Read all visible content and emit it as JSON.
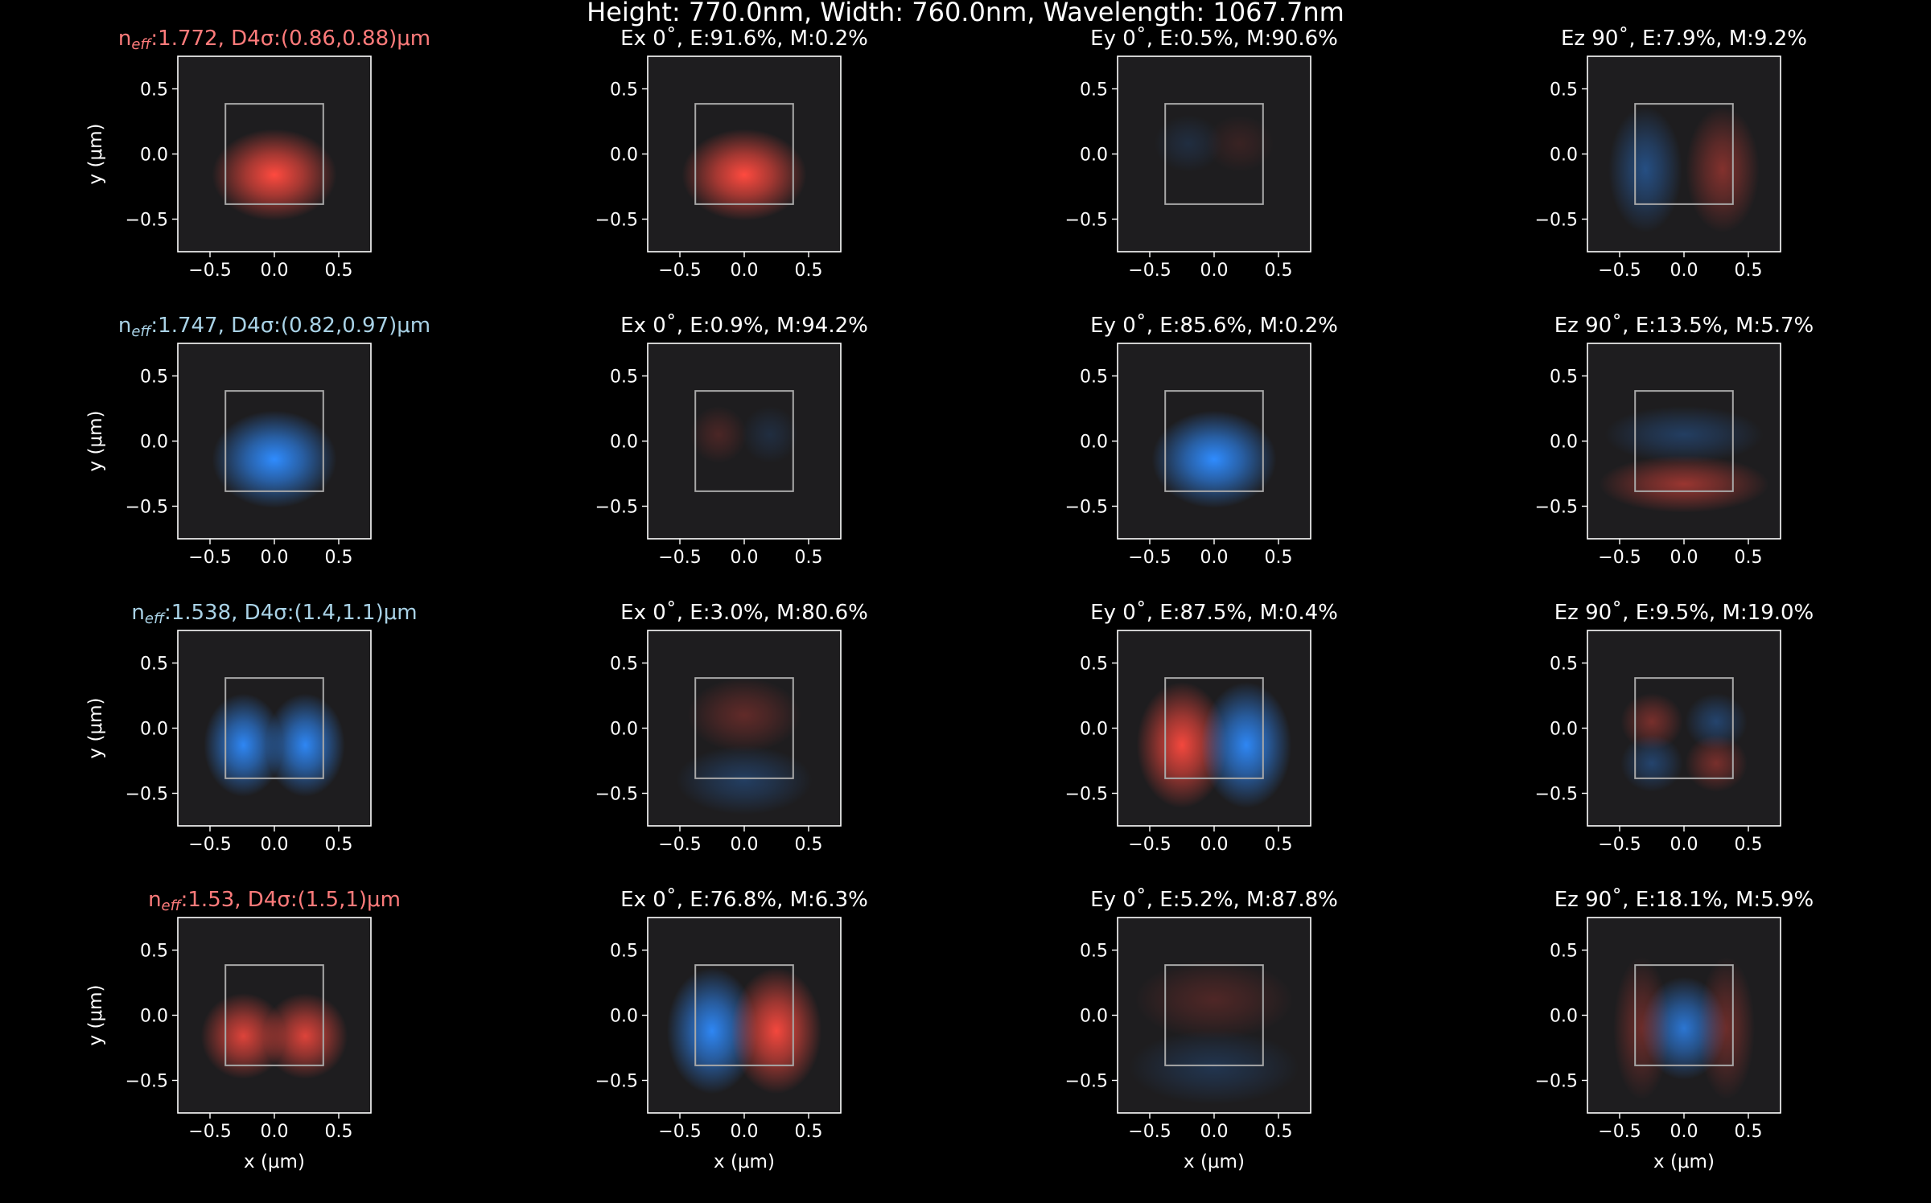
{
  "figure": {
    "suptitle": "Height: 770.0nm, Width: 760.0nm, Wavelength: 1067.7nm"
  },
  "colors": {
    "background": "#000000",
    "panel_bg": "#1e1d1f",
    "positive": "#ff4a3f",
    "negative": "#2f8cff",
    "waveguide": "#a8a8a8",
    "axis": "#ffffff",
    "mode_red": "#ff7b7b",
    "mode_blue": "#a9d2e6"
  },
  "axes_common": {
    "xlim": [
      -0.75,
      0.75
    ],
    "ylim": [
      -0.75,
      0.75
    ],
    "xticks": [
      -0.5,
      0.0,
      0.5
    ],
    "yticks": [
      -0.5,
      0.0,
      0.5
    ],
    "xtick_labels": [
      "−0.5",
      "0.0",
      "0.5"
    ],
    "ytick_labels": [
      "−0.5",
      "0.0",
      "0.5"
    ],
    "xlabel": "x (μm)",
    "ylabel": "y (μm)",
    "waveguide_box": {
      "x": [
        -0.38,
        0.38
      ],
      "y": [
        -0.385,
        0.385
      ]
    }
  },
  "chart_data": [
    {
      "type": "heatmap",
      "mode": 1,
      "panels": [
        {
          "title": {
            "pre": "n",
            "sub": "eff",
            "post": ":1.772, D4σ:(0.86,0.88)μm"
          },
          "title_color": "#ff7b7b",
          "lobes": [
            {
              "x": 0.0,
              "y": -0.16,
              "sx": 0.22,
              "sy": 0.16,
              "a": 1.0
            }
          ]
        },
        {
          "title": {
            "text": "Ex 0˚, E:91.6%, M:0.2%"
          },
          "lobes": [
            {
              "x": 0.0,
              "y": -0.16,
              "sx": 0.22,
              "sy": 0.16,
              "a": 1.0
            }
          ]
        },
        {
          "title": {
            "text": "Ey 0˚, E:0.5%, M:90.6%"
          },
          "lobes": [
            {
              "x": -0.2,
              "y": 0.08,
              "sx": 0.12,
              "sy": 0.1,
              "a": -0.15
            },
            {
              "x": 0.2,
              "y": 0.08,
              "sx": 0.12,
              "sy": 0.1,
              "a": 0.12
            }
          ]
        },
        {
          "title": {
            "text": "Ez 90˚, E:7.9%, M:9.2%"
          },
          "lobes": [
            {
              "x": -0.3,
              "y": -0.12,
              "sx": 0.13,
              "sy": 0.22,
              "a": -0.45
            },
            {
              "x": 0.3,
              "y": -0.12,
              "sx": 0.13,
              "sy": 0.22,
              "a": 0.45
            }
          ]
        }
      ]
    },
    {
      "type": "heatmap",
      "mode": 2,
      "panels": [
        {
          "title": {
            "pre": "n",
            "sub": "eff",
            "post": ":1.747, D4σ:(0.82,0.97)μm"
          },
          "title_color": "#a9d2e6",
          "lobes": [
            {
              "x": 0.0,
              "y": -0.14,
              "sx": 0.22,
              "sy": 0.17,
              "a": -1.0
            }
          ]
        },
        {
          "title": {
            "text": "Ex 0˚, E:0.9%, M:94.2%"
          },
          "lobes": [
            {
              "x": -0.2,
              "y": 0.05,
              "sx": 0.1,
              "sy": 0.1,
              "a": 0.2
            },
            {
              "x": 0.2,
              "y": 0.05,
              "sx": 0.1,
              "sy": 0.1,
              "a": -0.15
            }
          ]
        },
        {
          "title": {
            "text": "Ey 0˚, E:85.6%, M:0.2%"
          },
          "lobes": [
            {
              "x": 0.0,
              "y": -0.14,
              "sx": 0.22,
              "sy": 0.17,
              "a": -1.0
            }
          ]
        },
        {
          "title": {
            "text": "Ez 90˚, E:13.5%, M:5.7%"
          },
          "lobes": [
            {
              "x": 0.0,
              "y": 0.05,
              "sx": 0.28,
              "sy": 0.1,
              "a": -0.3
            },
            {
              "x": 0.0,
              "y": -0.33,
              "sx": 0.3,
              "sy": 0.1,
              "a": 0.55
            }
          ]
        }
      ]
    },
    {
      "type": "heatmap",
      "mode": 3,
      "panels": [
        {
          "title": {
            "pre": "n",
            "sub": "eff",
            "post": ":1.538, D4σ:(1.4,1.1)μm"
          },
          "title_color": "#a9d2e6",
          "lobes": [
            {
              "x": -0.24,
              "y": -0.13,
              "sx": 0.14,
              "sy": 0.18,
              "a": -0.95
            },
            {
              "x": 0.24,
              "y": -0.13,
              "sx": 0.14,
              "sy": 0.18,
              "a": -0.95
            }
          ]
        },
        {
          "title": {
            "text": "Ex 0˚, E:3.0%, M:80.6%"
          },
          "lobes": [
            {
              "x": 0.0,
              "y": 0.1,
              "sx": 0.2,
              "sy": 0.13,
              "a": 0.3
            },
            {
              "x": 0.0,
              "y": -0.4,
              "sx": 0.24,
              "sy": 0.12,
              "a": -0.3
            }
          ]
        },
        {
          "title": {
            "text": "Ey 0˚, E:87.5%, M:0.4%"
          },
          "lobes": [
            {
              "x": -0.25,
              "y": -0.13,
              "sx": 0.16,
              "sy": 0.22,
              "a": 0.95
            },
            {
              "x": 0.25,
              "y": -0.13,
              "sx": 0.16,
              "sy": 0.22,
              "a": -0.95
            }
          ]
        },
        {
          "title": {
            "text": "Ez 90˚, E:9.5%, M:19.0%"
          },
          "lobes": [
            {
              "x": -0.25,
              "y": 0.05,
              "sx": 0.11,
              "sy": 0.1,
              "a": 0.4
            },
            {
              "x": 0.25,
              "y": 0.05,
              "sx": 0.11,
              "sy": 0.1,
              "a": -0.35
            },
            {
              "x": -0.25,
              "y": -0.27,
              "sx": 0.11,
              "sy": 0.1,
              "a": -0.35
            },
            {
              "x": 0.25,
              "y": -0.27,
              "sx": 0.11,
              "sy": 0.1,
              "a": 0.4
            }
          ]
        }
      ]
    },
    {
      "type": "heatmap",
      "mode": 4,
      "panels": [
        {
          "title": {
            "pre": "n",
            "sub": "eff",
            "post": ":1.53, D4σ:(1.5,1)μm"
          },
          "title_color": "#ff7b7b",
          "lobes": [
            {
              "x": -0.24,
              "y": -0.16,
              "sx": 0.15,
              "sy": 0.15,
              "a": 0.85
            },
            {
              "x": 0.24,
              "y": -0.16,
              "sx": 0.15,
              "sy": 0.15,
              "a": 0.85
            }
          ]
        },
        {
          "title": {
            "text": "Ex 0˚, E:76.8%, M:6.3%"
          },
          "lobes": [
            {
              "x": -0.25,
              "y": -0.12,
              "sx": 0.16,
              "sy": 0.22,
              "a": -0.95
            },
            {
              "x": 0.25,
              "y": -0.12,
              "sx": 0.16,
              "sy": 0.22,
              "a": 0.95
            }
          ]
        },
        {
          "title": {
            "text": "Ey 0˚, E:5.2%, M:87.8%"
          },
          "lobes": [
            {
              "x": 0.0,
              "y": 0.12,
              "sx": 0.28,
              "sy": 0.14,
              "a": 0.22
            },
            {
              "x": 0.0,
              "y": -0.4,
              "sx": 0.3,
              "sy": 0.13,
              "a": -0.22
            }
          ]
        },
        {
          "title": {
            "text": "Ez 90˚, E:18.1%, M:5.9%"
          },
          "lobes": [
            {
              "x": 0.0,
              "y": -0.1,
              "sx": 0.15,
              "sy": 0.18,
              "a": -0.8
            },
            {
              "x": -0.33,
              "y": -0.1,
              "sx": 0.1,
              "sy": 0.25,
              "a": 0.35
            },
            {
              "x": 0.33,
              "y": -0.1,
              "sx": 0.1,
              "sy": 0.25,
              "a": 0.35
            }
          ]
        }
      ]
    }
  ]
}
